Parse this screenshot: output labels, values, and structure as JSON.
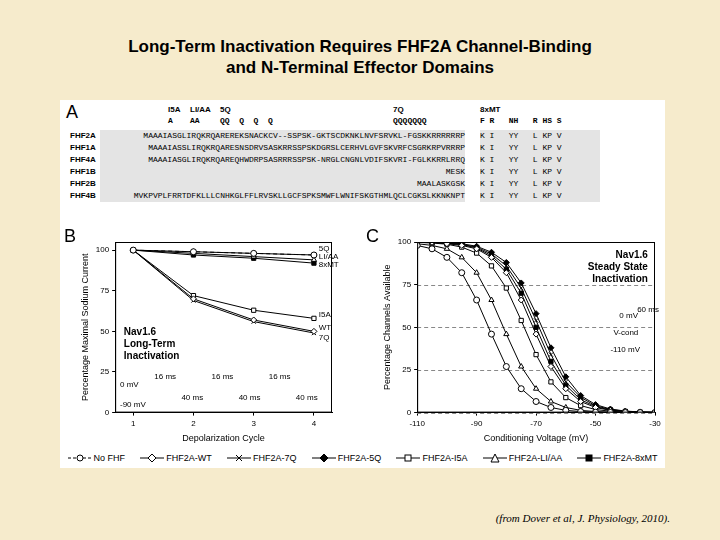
{
  "title": "Long-Term Inactivation Requires FHF2A Channel-Binding\nand N-Terminal Effector Domains",
  "caption": "(from Dover et al, J. Physiology, 2010).",
  "panel_a": {
    "label": "A",
    "mutations": [
      {
        "label": "I5A",
        "residues": "A"
      },
      {
        "label": "LI/AA",
        "residues": "AA"
      },
      {
        "label": "5Q",
        "residues": "QQ  Q  Q  Q"
      },
      {
        "label": "7Q",
        "residues": "QQQQQQQ"
      },
      {
        "label": "8xMT",
        "residues": "F R   NH   R HS S"
      }
    ],
    "rows": [
      {
        "name": "FHF2A",
        "sequence": "MAAAIASGLIRQKRQAREREKSNACKCV--SSPSK-GKTSCDKNKLNVFSRVKL-FGSKKRRRRRRP",
        "tail": "K I   YY   L KP V"
      },
      {
        "name": "FHF1A",
        "sequence": "MAAAIASSLIRQKRQARESNSDRVSASKRRSSPSKDGRSLCERHVLGVFSKVRFCSGRKRPVRRRP",
        "tail": "K I   YY   L KP V"
      },
      {
        "name": "FHF4A",
        "sequence": "MAAAIASGLIRQKRQAREQHWDRPSASRRRSSPSK-NRGLCNGNLVDIFSKVRI-FGLKKRRLRRQ",
        "tail": "K I   YY   L KP V"
      },
      {
        "name": "FHF1B",
        "sequence": "MESK",
        "tail": "K I   YY   L KP V"
      },
      {
        "name": "FHF2B",
        "sequence": "MAALASKGSK",
        "tail": "K I   YY   L KP V"
      },
      {
        "name": "FHF4B",
        "sequence": "MVKPVPLFRRTDFKLLLCNHKGLFFLRVSKLLGCFSPKSMWFLWNIFSKGTHMLQCLCGKSLKKNKNPT",
        "tail": "K I   YY   L KP V"
      }
    ]
  },
  "chart_data": [
    {
      "type": "line",
      "panel": "B",
      "title": "Nav1.6\nLong-Term\nInactivation",
      "x_label": "Depolarization Cycle",
      "y_label": "Percentage Maximal Sodium Current",
      "x": [
        1,
        2,
        3,
        4
      ],
      "xlim": [
        0.7,
        4.3
      ],
      "xticks": [
        1,
        2,
        3,
        4
      ],
      "ylim": [
        0,
        105
      ],
      "yticks": [
        0,
        25,
        50,
        75,
        100
      ],
      "grid": false,
      "legend": "bottom",
      "series": [
        {
          "name": "No FHF",
          "color": "#000000",
          "marker": "open_circle",
          "line_style": "dashed",
          "values": [
            100,
            99,
            98,
            97
          ]
        },
        {
          "name": "FHF2A-WT",
          "color": "#000000",
          "marker": "open_diamond",
          "line_style": "solid",
          "values": [
            100,
            70,
            57,
            50
          ]
        },
        {
          "name": "FHF2A-7Q",
          "color": "#000000",
          "marker": "x",
          "line_style": "solid",
          "values": [
            100,
            69,
            56,
            49
          ]
        },
        {
          "name": "FHF2A-5Q",
          "color": "#000000",
          "marker": "filled_diamond",
          "line_style": "solid",
          "values": [
            100,
            99,
            98,
            97
          ]
        },
        {
          "name": "FHF2A-I5A",
          "color": "#000000",
          "marker": "open_square",
          "line_style": "solid",
          "values": [
            100,
            72,
            63,
            58
          ]
        },
        {
          "name": "FHF2A-LI/AA",
          "color": "#000000",
          "marker": "open_triangle",
          "line_style": "solid",
          "values": [
            100,
            98,
            96,
            94
          ]
        },
        {
          "name": "FHF2A-8xMT",
          "color": "#000000",
          "marker": "filled_square",
          "line_style": "solid",
          "values": [
            100,
            97,
            95,
            92
          ]
        }
      ],
      "annotations": [
        {
          "text": "5Q",
          "x": 4.08,
          "y": 101
        },
        {
          "text": "LI/AA",
          "x": 4.08,
          "y": 96
        },
        {
          "text": "8xMT",
          "x": 4.08,
          "y": 91
        },
        {
          "text": "I5A",
          "x": 4.08,
          "y": 60
        },
        {
          "text": "WT",
          "x": 4.08,
          "y": 52
        },
        {
          "text": "7Q",
          "x": 4.08,
          "y": 46
        },
        {
          "text": "16 ms",
          "x": 1.35,
          "y": 22
        },
        {
          "text": "16 ms",
          "x": 2.3,
          "y": 22
        },
        {
          "text": "16 ms",
          "x": 3.25,
          "y": 22
        },
        {
          "text": "40 ms",
          "x": 1.8,
          "y": 9
        },
        {
          "text": "40 ms",
          "x": 2.75,
          "y": 9
        },
        {
          "text": "40 ms",
          "x": 3.7,
          "y": 9
        },
        {
          "text": "0 mV",
          "x": 0.78,
          "y": 17
        },
        {
          "text": "-90 mV",
          "x": 0.78,
          "y": 5
        }
      ]
    },
    {
      "type": "line",
      "panel": "C",
      "title": "Nav1.6\nSteady State\nInactivation",
      "x_label": "Conditioning Voltage (mV)",
      "y_label": "Percentage Channels Available",
      "x": [
        -110,
        -105,
        -100,
        -95,
        -90,
        -85,
        -80,
        -75,
        -70,
        -65,
        -60,
        -55,
        -50,
        -45,
        -40,
        -35,
        -30
      ],
      "xlim": [
        -110,
        -30
      ],
      "xticks": [
        -110,
        -90,
        -70,
        -50,
        -30
      ],
      "ylim": [
        0,
        100
      ],
      "yticks": [
        0,
        25,
        50,
        75,
        100
      ],
      "grid": true,
      "series": [
        {
          "name": "No FHF",
          "color": "#000000",
          "marker": "open_circle",
          "line_style": "solid",
          "values": [
            98,
            96,
            91,
            82,
            66,
            46,
            27,
            14,
            6.5,
            3,
            1.3,
            0.6,
            0.2,
            0.1,
            0,
            0,
            0
          ]
        },
        {
          "name": "FHF2A-WT",
          "color": "#000000",
          "marker": "open_diamond",
          "line_style": "solid",
          "values": [
            100,
            99.8,
            99,
            98,
            96,
            91,
            82,
            66,
            46,
            27,
            14,
            6.5,
            3,
            1.3,
            0.6,
            0.2,
            0.1
          ]
        },
        {
          "name": "FHF2A-7Q",
          "color": "#000000",
          "marker": "x",
          "line_style": "solid",
          "values": [
            100,
            99.8,
            99.3,
            98.6,
            97,
            93,
            86,
            73,
            54,
            34,
            18,
            9,
            4,
            1.8,
            0.8,
            0.3,
            0.1
          ]
        },
        {
          "name": "FHF2A-5Q",
          "color": "#000000",
          "marker": "filled_diamond",
          "line_style": "solid",
          "values": [
            100,
            99.8,
            99.5,
            99,
            97.5,
            94,
            88,
            76,
            58,
            38,
            21,
            10,
            4.7,
            2.1,
            0.9,
            0.4,
            0.2
          ]
        },
        {
          "name": "FHF2A-I5A",
          "color": "#000000",
          "marker": "open_square",
          "line_style": "solid",
          "values": [
            99.8,
            99.4,
            98.7,
            97,
            93.5,
            86,
            73,
            54,
            34,
            18,
            8.8,
            4.1,
            1.8,
            0.8,
            0.3,
            0.1,
            0
          ]
        },
        {
          "name": "FHF2A-LI/AA",
          "color": "#000000",
          "marker": "open_triangle",
          "line_style": "solid",
          "values": [
            99,
            98,
            96,
            91,
            82,
            66,
            46,
            27,
            14,
            6.5,
            3,
            1.3,
            0.6,
            0.2,
            0.1,
            0,
            0
          ]
        },
        {
          "name": "FHF2A-8xMT",
          "color": "#000000",
          "marker": "filled_square",
          "line_style": "solid",
          "values": [
            99.9,
            99.8,
            99.3,
            98.5,
            96.5,
            92,
            84,
            70,
            50,
            30,
            16,
            7.6,
            3.5,
            1.5,
            0.7,
            0.3,
            0.1
          ]
        }
      ],
      "annotations": [
        {
          "text": "0 mV",
          "x": -42,
          "y": 57
        },
        {
          "text": "60 ms",
          "x": -36,
          "y": 60
        },
        {
          "text": "V-cond",
          "x": -44,
          "y": 47
        },
        {
          "text": "-110 mV",
          "x": -45,
          "y": 37
        }
      ]
    }
  ]
}
